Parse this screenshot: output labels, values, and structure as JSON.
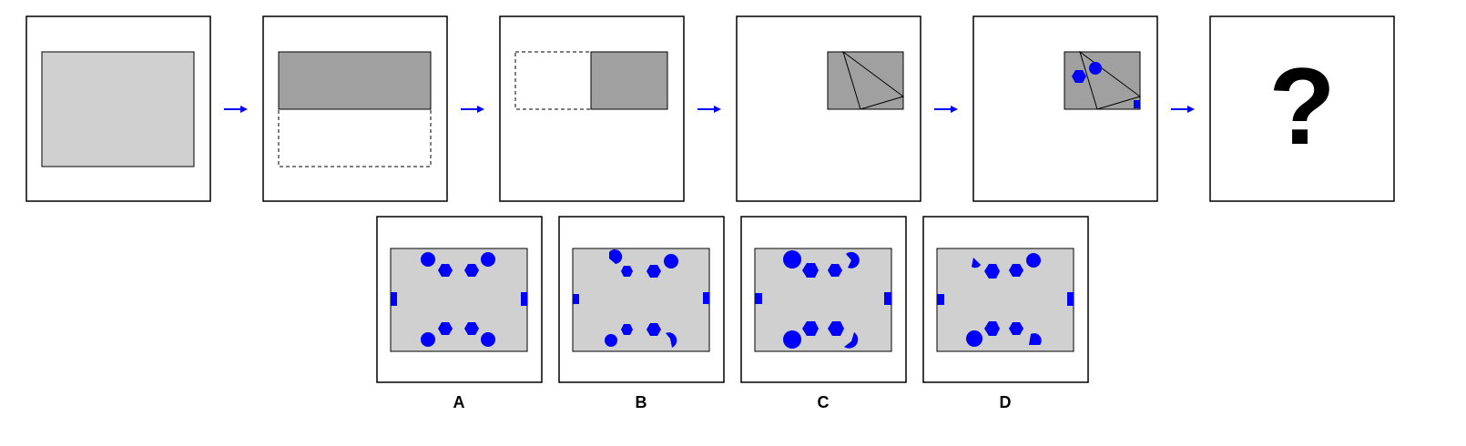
{
  "colors": {
    "paper": "#d0d0d0",
    "folded_paper": "#a0a0a0",
    "punch": "#0000ff",
    "arrow": "#0000ff",
    "frame": "#000000"
  },
  "sequence": {
    "steps": [
      {
        "name": "flat-paper"
      },
      {
        "name": "fold-bottom-up"
      },
      {
        "name": "fold-left-over"
      },
      {
        "name": "fold-corner-diagonal"
      },
      {
        "name": "punch-holes"
      }
    ],
    "question_mark": "?",
    "arrow_icon": "right-arrow-icon"
  },
  "options": [
    {
      "label": "A"
    },
    {
      "label": "B"
    },
    {
      "label": "C"
    },
    {
      "label": "D"
    }
  ]
}
